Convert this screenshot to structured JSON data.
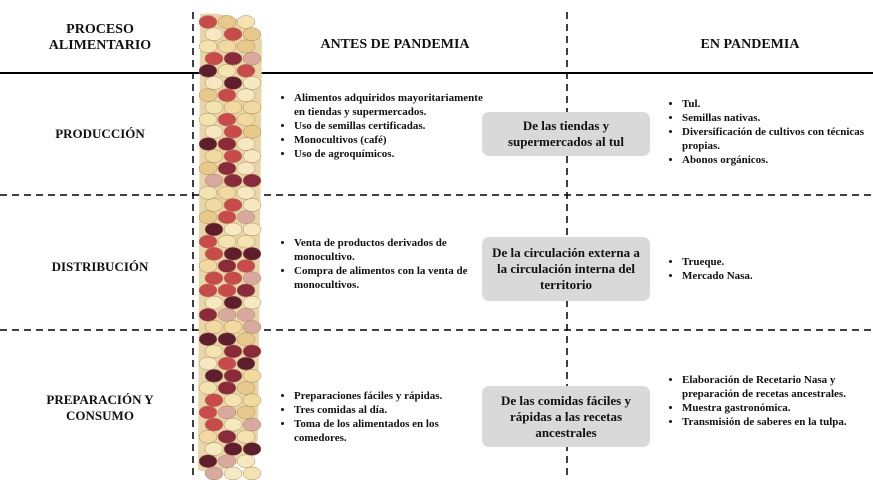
{
  "header": {
    "process": "PROCESO ALIMENTARIO",
    "before": "ANTES DE PANDEMIA",
    "during": "EN PANDEMIA"
  },
  "rows": [
    {
      "label": "PRODUCCIÓN",
      "before": [
        "Alimentos adquiridos mayoritariamente en tiendas y supermercados.",
        "Uso de semillas certificadas.",
        "Monocultivos (café)",
        "Uso de agroquímicos."
      ],
      "transition": "De las tiendas y supermercados al tul",
      "during": [
        "Tul.",
        "Semillas nativas.",
        "Diversificación de cultivos con técnicas propias.",
        "Abonos orgánicos."
      ]
    },
    {
      "label": "DISTRIBUCIÓN",
      "before": [
        "Venta de productos derivados de monocultivo.",
        "Compra de alimentos con la venta de monocultivos."
      ],
      "transition": "De la circulación externa a la circulación interna del territorio",
      "during": [
        "Trueque.",
        "Mercado Nasa."
      ]
    },
    {
      "label": "PREPARACIÓN Y CONSUMO",
      "before": [
        "Preparaciones fáciles y rápidas.",
        "Tres comidas al día.",
        "Toma de los alimentados en los comedores."
      ],
      "transition": "De las comidas fáciles y rápidas a las recetas ancestrales",
      "during": [
        "Elaboración de Recetario Nasa y preparación de recetas ancestrales.",
        "Muestra gastronómica.",
        "Transmisión de saberes en la tulpa."
      ]
    }
  ]
}
